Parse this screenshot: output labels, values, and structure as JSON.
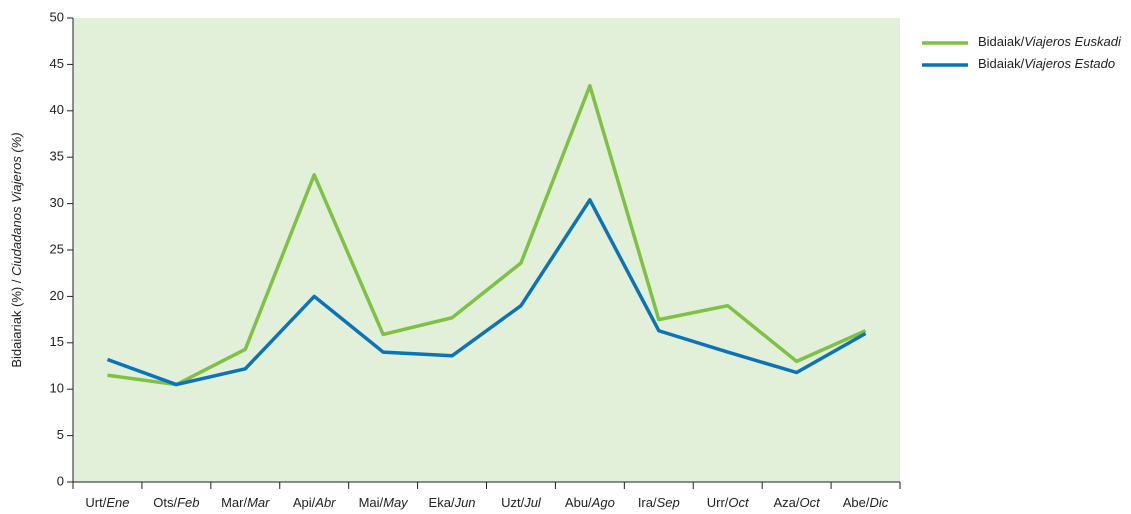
{
  "chart_data": {
    "type": "line",
    "y_label": "Bidaiariak (%) / Ciudadanos Viajeros (%)",
    "categories": [
      "Urt/Ene",
      "Ots/Feb",
      "Mar/Mar",
      "Api/Abr",
      "Mai/May",
      "Eka/Jun",
      "Uzt/Jul",
      "Abu/Ago",
      "Ira/Sep",
      "Urr/Oct",
      "Aza/Oct",
      "Abe/Dic"
    ],
    "series": [
      {
        "name": "Bidaiak/Viajeros Euskadi",
        "color": "#7dc242",
        "values": [
          11.5,
          10.5,
          14.3,
          33.1,
          15.9,
          17.7,
          23.6,
          42.7,
          17.5,
          19.0,
          13.0,
          16.3
        ]
      },
      {
        "name": "Bidaiak/Viajeros Estado",
        "color": "#0b74b8",
        "values": [
          13.2,
          10.5,
          12.2,
          20.0,
          14.0,
          13.6,
          19.0,
          30.4,
          16.3,
          14.0,
          11.8,
          16.0
        ]
      }
    ],
    "ylim": [
      0,
      50
    ],
    "yticks": [
      0,
      5,
      10,
      15,
      20,
      25,
      30,
      35,
      40,
      45,
      50
    ],
    "background": "#e2efd9",
    "legend": "top-right"
  }
}
